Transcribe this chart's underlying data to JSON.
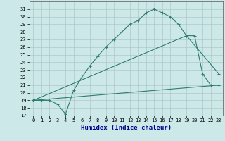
{
  "title": "",
  "xlabel": "Humidex (Indice chaleur)",
  "background_color": "#cce8e8",
  "grid_color": "#b0c8c8",
  "line_color": "#2e7d6e",
  "xlim": [
    -0.5,
    23.5
  ],
  "ylim": [
    17,
    32
  ],
  "xticks": [
    0,
    1,
    2,
    3,
    4,
    5,
    6,
    7,
    8,
    9,
    10,
    11,
    12,
    13,
    14,
    15,
    16,
    17,
    18,
    19,
    20,
    21,
    22,
    23
  ],
  "yticks": [
    17,
    18,
    19,
    20,
    21,
    22,
    23,
    24,
    25,
    26,
    27,
    28,
    29,
    30,
    31
  ],
  "line1_x": [
    0,
    1,
    2,
    3,
    4,
    5,
    6,
    7,
    8,
    9,
    10,
    11,
    12,
    13,
    14,
    15,
    16,
    17,
    18,
    19,
    20,
    21,
    22,
    23
  ],
  "line1_y": [
    19.0,
    19.0,
    19.0,
    18.5,
    17.2,
    20.3,
    22.0,
    23.5,
    24.8,
    26.0,
    27.0,
    28.0,
    29.0,
    29.5,
    30.5,
    31.0,
    30.5,
    30.0,
    29.0,
    27.5,
    27.5,
    22.5,
    21.0,
    21.0
  ],
  "line2_x": [
    0,
    23
  ],
  "line2_y": [
    19.0,
    21.0
  ],
  "line3_x": [
    0,
    19,
    23
  ],
  "line3_y": [
    19.0,
    27.5,
    22.5
  ],
  "xlabel_color": "#00008b",
  "xlabel_fontsize": 6.5,
  "tick_fontsize": 5.0
}
